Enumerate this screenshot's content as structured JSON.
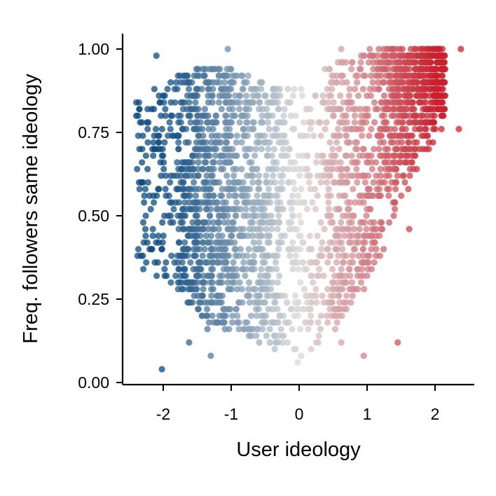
{
  "chart_data": {
    "type": "scatter",
    "title": "",
    "xlabel": "User ideology",
    "ylabel": "Freq. followers same ideology",
    "xlim": [
      -2.55,
      2.6
    ],
    "ylim": [
      -0.01,
      1.05
    ],
    "x_ticks": [
      -2,
      -1,
      0,
      1,
      2
    ],
    "x_tick_labels": [
      "-2",
      "-1",
      "0",
      "1",
      "2"
    ],
    "y_ticks": [
      0.0,
      0.25,
      0.5,
      0.75,
      1.0
    ],
    "y_tick_labels": [
      "0.00",
      "0.25",
      "0.50",
      "0.75",
      "1.00"
    ],
    "grid": false,
    "legend": "none",
    "color_scale": {
      "variable": "x",
      "stops": [
        {
          "x": -2.0,
          "color": "#0b4a80"
        },
        {
          "x": 0.0,
          "color": "#d9d9d9"
        },
        {
          "x": 2.0,
          "color": "#c8202d"
        }
      ]
    },
    "point_alpha": 0.75,
    "point_cloud": {
      "n_points": 2600,
      "x_distribution": [
        {
          "range": [
            -2.4,
            -1.8
          ],
          "weight": 0.05
        },
        {
          "range": [
            -1.8,
            -1.0
          ],
          "weight": 0.25
        },
        {
          "range": [
            -1.0,
            -0.3
          ],
          "weight": 0.18
        },
        {
          "range": [
            -0.3,
            0.4
          ],
          "weight": 0.1
        },
        {
          "range": [
            0.4,
            1.2
          ],
          "weight": 0.17
        },
        {
          "range": [
            1.2,
            2.15
          ],
          "weight": 0.25
        }
      ],
      "trend": [
        {
          "x": -2.3,
          "y_min": 0.35,
          "y_max": 0.85
        },
        {
          "x": -2.0,
          "y_min": 0.3,
          "y_max": 0.92
        },
        {
          "x": -1.5,
          "y_min": 0.2,
          "y_max": 0.95
        },
        {
          "x": -1.0,
          "y_min": 0.15,
          "y_max": 0.95
        },
        {
          "x": -0.5,
          "y_min": 0.12,
          "y_max": 0.9
        },
        {
          "x": 0.0,
          "y_min": 0.08,
          "y_max": 0.88
        },
        {
          "x": 0.5,
          "y_min": 0.15,
          "y_max": 0.95
        },
        {
          "x": 1.0,
          "y_min": 0.3,
          "y_max": 1.0
        },
        {
          "x": 1.5,
          "y_min": 0.5,
          "y_max": 1.0
        },
        {
          "x": 2.0,
          "y_min": 0.7,
          "y_max": 1.0
        },
        {
          "x": 2.2,
          "y_min": 0.76,
          "y_max": 1.0
        }
      ],
      "y_rounding_step": 0.02
    },
    "outliers": [
      {
        "x": -2.02,
        "y": 0.04
      },
      {
        "x": -2.35,
        "y": 0.82
      },
      {
        "x": -2.32,
        "y": 0.6
      },
      {
        "x": -2.3,
        "y": 0.38
      },
      {
        "x": -2.2,
        "y": 0.4
      },
      {
        "x": -1.62,
        "y": 0.12
      },
      {
        "x": -1.35,
        "y": 0.16
      },
      {
        "x": -1.3,
        "y": 0.08
      },
      {
        "x": -1.1,
        "y": 0.18
      },
      {
        "x": -0.62,
        "y": 0.16
      },
      {
        "x": -0.3,
        "y": 0.14
      },
      {
        "x": -0.05,
        "y": 0.1
      },
      {
        "x": -0.02,
        "y": 0.06
      },
      {
        "x": 0.25,
        "y": 0.12
      },
      {
        "x": 0.62,
        "y": 0.12
      },
      {
        "x": 0.95,
        "y": 0.08
      },
      {
        "x": 1.45,
        "y": 0.12
      },
      {
        "x": 1.62,
        "y": 0.46
      },
      {
        "x": 2.35,
        "y": 0.76
      },
      {
        "x": 2.38,
        "y": 1.0
      },
      {
        "x": 0.62,
        "y": 1.0
      },
      {
        "x": -1.05,
        "y": 1.0
      },
      {
        "x": -2.1,
        "y": 0.98
      },
      {
        "x": 2.05,
        "y": 0.82
      }
    ]
  }
}
